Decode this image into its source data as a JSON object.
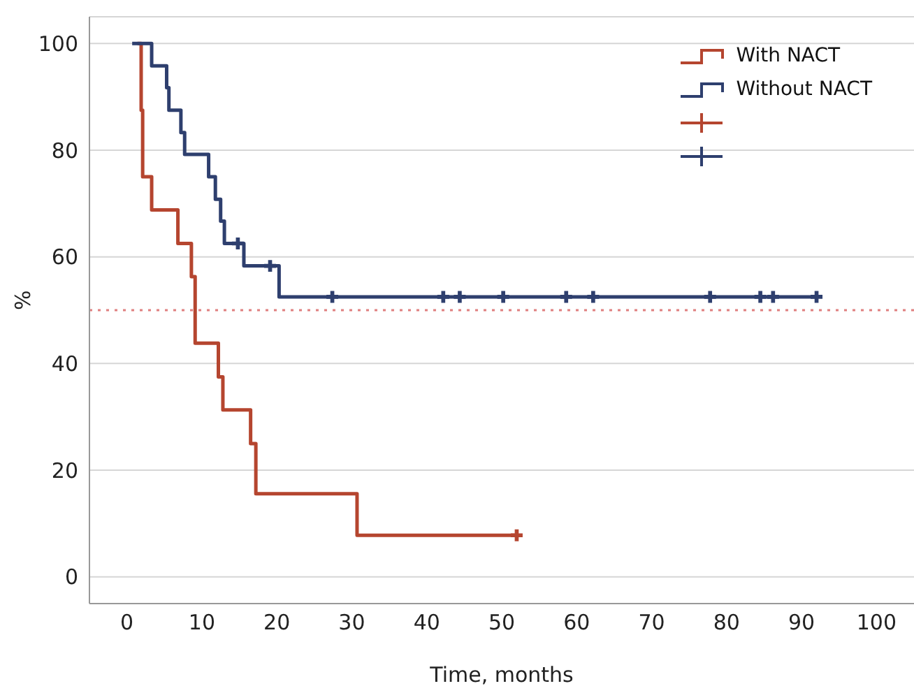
{
  "chart_data": {
    "type": "step",
    "xlabel": "Time, months",
    "ylabel": "%",
    "xlim": [
      -5,
      105
    ],
    "xticks": [
      0,
      10,
      20,
      30,
      40,
      50,
      60,
      70,
      80,
      90,
      100
    ],
    "ylim": [
      -5,
      105
    ],
    "yticks": [
      0,
      20,
      40,
      60,
      80,
      100
    ],
    "grid": "y",
    "legend": "top right",
    "line_style": "solid",
    "ref_lines": [
      {
        "axis": "y",
        "value": 50,
        "color": "#e08080",
        "line_style": "dotted"
      }
    ],
    "series": [
      {
        "name": "With NACT",
        "type": "step",
        "marker": "none",
        "color": "#b5452f",
        "x": [
          1.4,
          1.9,
          2.1,
          3.3,
          6.8,
          8.6,
          9.1,
          12.2,
          12.8,
          16.5,
          17.2,
          30.7,
          52
        ],
        "values": [
          100,
          87.5,
          75,
          68.8,
          62.5,
          56.3,
          43.8,
          37.5,
          31.3,
          25,
          15.6,
          7.8,
          7.8
        ]
      },
      {
        "name": "Without NACT",
        "type": "step",
        "marker": "none",
        "color": "#2e3f6e",
        "x": [
          0.7,
          3.3,
          5.3,
          5.6,
          7.2,
          7.7,
          10.9,
          11.8,
          12.5,
          13,
          15.6,
          20.3,
          92
        ],
        "values": [
          100,
          95.8,
          91.7,
          87.5,
          83.3,
          79.2,
          75,
          70.8,
          66.7,
          62.5,
          58.3,
          52.5,
          52.5
        ]
      },
      {
        "type": "scatter",
        "marker": "cross",
        "color": "#b5452f",
        "x": [
          52
        ],
        "values": [
          7.8
        ]
      },
      {
        "type": "scatter",
        "marker": "cross",
        "color": "#2e3f6e",
        "x": [
          14.8,
          19.1,
          27.4,
          42.2,
          44.4,
          50.2,
          58.6,
          62.2,
          77.8,
          84.5,
          86.2,
          92
        ],
        "values": [
          62.5,
          58.3,
          52.5,
          52.5,
          52.5,
          52.5,
          52.5,
          52.5,
          52.5,
          52.5,
          52.5,
          52.5
        ]
      }
    ]
  }
}
